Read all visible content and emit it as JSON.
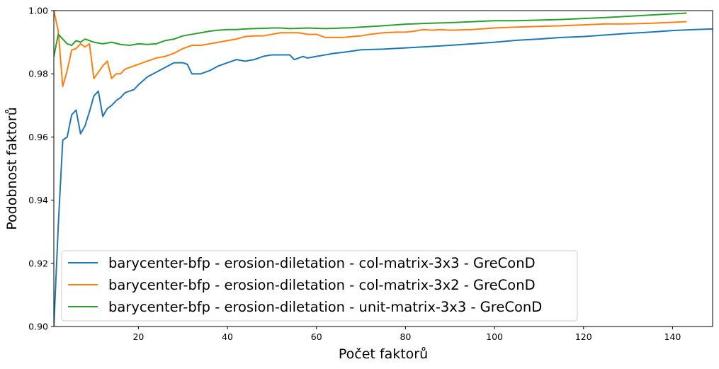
{
  "chart_data": {
    "type": "line",
    "title": "",
    "xlabel": "Počet faktorů",
    "ylabel": "Podobnost faktorů",
    "xlim": [
      1,
      149
    ],
    "ylim": [
      0.9,
      1.0
    ],
    "xticks": [
      20,
      40,
      60,
      80,
      100,
      120,
      140
    ],
    "yticks": [
      0.9,
      0.92,
      0.94,
      0.96,
      0.98,
      1.0
    ],
    "ytick_labels": [
      "0.90",
      "0.92",
      "0.94",
      "0.96",
      "0.98",
      "1.00"
    ],
    "grid": false,
    "legend_position": "lower-left",
    "series": [
      {
        "name": "barycenter-bfp - erosion-diletation - col-matrix-3x3 - GreConD",
        "color": "#1f77b4",
        "points": [
          [
            1,
            0.9
          ],
          [
            2,
            0.932
          ],
          [
            3,
            0.959
          ],
          [
            4,
            0.96
          ],
          [
            5,
            0.967
          ],
          [
            6,
            0.9685
          ],
          [
            7,
            0.961
          ],
          [
            8,
            0.9635
          ],
          [
            9,
            0.968
          ],
          [
            10,
            0.973
          ],
          [
            11,
            0.9745
          ],
          [
            12,
            0.9665
          ],
          [
            13,
            0.969
          ],
          [
            14,
            0.97
          ],
          [
            15,
            0.9715
          ],
          [
            16,
            0.9725
          ],
          [
            17,
            0.974
          ],
          [
            18,
            0.9745
          ],
          [
            19,
            0.975
          ],
          [
            20,
            0.9765
          ],
          [
            22,
            0.979
          ],
          [
            24,
            0.9805
          ],
          [
            26,
            0.982
          ],
          [
            28,
            0.9835
          ],
          [
            30,
            0.9835
          ],
          [
            31,
            0.983
          ],
          [
            32,
            0.98
          ],
          [
            34,
            0.98
          ],
          [
            36,
            0.981
          ],
          [
            38,
            0.9825
          ],
          [
            40,
            0.9835
          ],
          [
            42,
            0.9845
          ],
          [
            44,
            0.984
          ],
          [
            46,
            0.9845
          ],
          [
            48,
            0.9855
          ],
          [
            50,
            0.986
          ],
          [
            52,
            0.986
          ],
          [
            54,
            0.986
          ],
          [
            55,
            0.9845
          ],
          [
            57,
            0.9855
          ],
          [
            58,
            0.985
          ],
          [
            60,
            0.9855
          ],
          [
            62,
            0.986
          ],
          [
            64,
            0.9865
          ],
          [
            66,
            0.9868
          ],
          [
            68,
            0.9872
          ],
          [
            70,
            0.9876
          ],
          [
            75,
            0.9878
          ],
          [
            80,
            0.9882
          ],
          [
            85,
            0.9886
          ],
          [
            90,
            0.989
          ],
          [
            95,
            0.9895
          ],
          [
            100,
            0.99
          ],
          [
            105,
            0.9906
          ],
          [
            110,
            0.991
          ],
          [
            115,
            0.9915
          ],
          [
            120,
            0.9918
          ],
          [
            125,
            0.9923
          ],
          [
            130,
            0.9928
          ],
          [
            135,
            0.9932
          ],
          [
            140,
            0.9937
          ],
          [
            145,
            0.994
          ],
          [
            149,
            0.9942
          ]
        ]
      },
      {
        "name": "barycenter-bfp - erosion-diletation - col-matrix-3x2 - GreConD",
        "color": "#ff7f0e",
        "points": [
          [
            1,
            1.0
          ],
          [
            2,
            0.9935
          ],
          [
            3,
            0.976
          ],
          [
            4,
            0.981
          ],
          [
            5,
            0.9875
          ],
          [
            6,
            0.988
          ],
          [
            7,
            0.9895
          ],
          [
            8,
            0.9885
          ],
          [
            9,
            0.9895
          ],
          [
            10,
            0.9785
          ],
          [
            11,
            0.9805
          ],
          [
            12,
            0.9825
          ],
          [
            13,
            0.984
          ],
          [
            14,
            0.9785
          ],
          [
            15,
            0.98
          ],
          [
            16,
            0.98
          ],
          [
            17,
            0.9815
          ],
          [
            18,
            0.982
          ],
          [
            20,
            0.983
          ],
          [
            22,
            0.984
          ],
          [
            24,
            0.985
          ],
          [
            26,
            0.9855
          ],
          [
            28,
            0.9865
          ],
          [
            30,
            0.988
          ],
          [
            32,
            0.989
          ],
          [
            34,
            0.989
          ],
          [
            36,
            0.9895
          ],
          [
            38,
            0.99
          ],
          [
            40,
            0.9905
          ],
          [
            42,
            0.991
          ],
          [
            44,
            0.9918
          ],
          [
            46,
            0.992
          ],
          [
            48,
            0.992
          ],
          [
            50,
            0.9925
          ],
          [
            52,
            0.993
          ],
          [
            54,
            0.993
          ],
          [
            56,
            0.993
          ],
          [
            58,
            0.9925
          ],
          [
            60,
            0.9925
          ],
          [
            62,
            0.9915
          ],
          [
            64,
            0.9915
          ],
          [
            66,
            0.9915
          ],
          [
            68,
            0.9918
          ],
          [
            70,
            0.992
          ],
          [
            72,
            0.9925
          ],
          [
            75,
            0.993
          ],
          [
            78,
            0.9932
          ],
          [
            80,
            0.9932
          ],
          [
            82,
            0.9935
          ],
          [
            84,
            0.994
          ],
          [
            86,
            0.9938
          ],
          [
            88,
            0.994
          ],
          [
            90,
            0.9938
          ],
          [
            95,
            0.994
          ],
          [
            100,
            0.9945
          ],
          [
            105,
            0.9948
          ],
          [
            110,
            0.995
          ],
          [
            115,
            0.9952
          ],
          [
            120,
            0.9955
          ],
          [
            125,
            0.9958
          ],
          [
            130,
            0.9958
          ],
          [
            135,
            0.996
          ],
          [
            140,
            0.9963
          ],
          [
            143,
            0.9965
          ]
        ]
      },
      {
        "name": "barycenter-bfp - erosion-diletation - unit-matrix-3x3 - GreConD",
        "color": "#2ca02c",
        "points": [
          [
            1,
            0.9855
          ],
          [
            2,
            0.9925
          ],
          [
            3,
            0.991
          ],
          [
            4,
            0.9895
          ],
          [
            5,
            0.989
          ],
          [
            6,
            0.9905
          ],
          [
            7,
            0.99
          ],
          [
            8,
            0.991
          ],
          [
            9,
            0.9905
          ],
          [
            10,
            0.99
          ],
          [
            12,
            0.9895
          ],
          [
            14,
            0.99
          ],
          [
            16,
            0.9893
          ],
          [
            18,
            0.989
          ],
          [
            20,
            0.9895
          ],
          [
            22,
            0.9893
          ],
          [
            24,
            0.9895
          ],
          [
            26,
            0.9905
          ],
          [
            28,
            0.991
          ],
          [
            30,
            0.992
          ],
          [
            32,
            0.9925
          ],
          [
            34,
            0.993
          ],
          [
            36,
            0.9935
          ],
          [
            38,
            0.9938
          ],
          [
            40,
            0.994
          ],
          [
            42,
            0.994
          ],
          [
            44,
            0.9942
          ],
          [
            46,
            0.9943
          ],
          [
            48,
            0.9944
          ],
          [
            50,
            0.9945
          ],
          [
            52,
            0.9945
          ],
          [
            54,
            0.9943
          ],
          [
            56,
            0.9944
          ],
          [
            58,
            0.9945
          ],
          [
            60,
            0.9944
          ],
          [
            62,
            0.9943
          ],
          [
            64,
            0.9944
          ],
          [
            66,
            0.9945
          ],
          [
            68,
            0.9946
          ],
          [
            70,
            0.9948
          ],
          [
            75,
            0.9952
          ],
          [
            80,
            0.9957
          ],
          [
            85,
            0.996
          ],
          [
            90,
            0.9962
          ],
          [
            95,
            0.9965
          ],
          [
            100,
            0.9968
          ],
          [
            105,
            0.9968
          ],
          [
            110,
            0.997
          ],
          [
            115,
            0.9972
          ],
          [
            120,
            0.9975
          ],
          [
            125,
            0.9978
          ],
          [
            130,
            0.9982
          ],
          [
            135,
            0.9986
          ],
          [
            140,
            0.999
          ],
          [
            143,
            0.9992
          ]
        ]
      }
    ]
  }
}
